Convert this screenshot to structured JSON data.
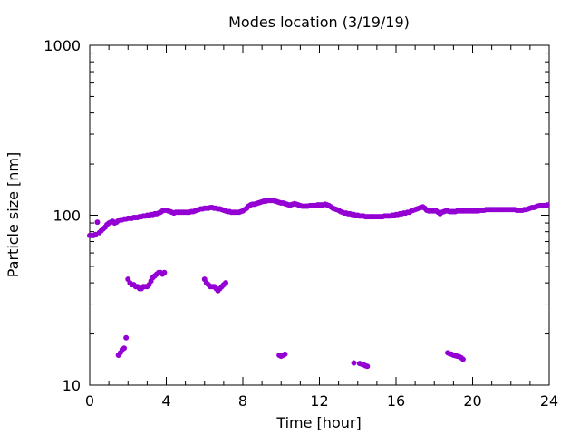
{
  "chart_data": {
    "type": "scatter",
    "title": "Modes location (3/19/19)",
    "xlabel": "Time [hour]",
    "ylabel": "Particle size [nm]",
    "xlim": [
      0,
      24
    ],
    "ylim": [
      10,
      1000
    ],
    "y_scale": "log",
    "x_ticks": [
      0,
      4,
      8,
      12,
      16,
      20,
      24
    ],
    "y_ticks": [
      10,
      100,
      1000
    ],
    "grid": false,
    "legend": "none",
    "marker_color": "#9400d3",
    "series": [
      {
        "points": [
          [
            0.0,
            76
          ],
          [
            0.1,
            76
          ],
          [
            0.2,
            76
          ],
          [
            0.3,
            77
          ],
          [
            0.4,
            91
          ],
          [
            0.5,
            79
          ],
          [
            0.6,
            81
          ],
          [
            0.7,
            83
          ],
          [
            0.8,
            85
          ],
          [
            0.9,
            88
          ],
          [
            1.0,
            90
          ],
          [
            1.1,
            91
          ],
          [
            1.2,
            92
          ],
          [
            1.3,
            90
          ],
          [
            1.4,
            91
          ],
          [
            1.5,
            93
          ],
          [
            1.6,
            94
          ],
          [
            1.7,
            94
          ],
          [
            1.8,
            95
          ],
          [
            1.9,
            95
          ],
          [
            2.0,
            96
          ],
          [
            2.1,
            96
          ],
          [
            2.2,
            96
          ],
          [
            2.3,
            97
          ],
          [
            2.4,
            97
          ],
          [
            2.5,
            97
          ],
          [
            2.6,
            98
          ],
          [
            2.7,
            98
          ],
          [
            2.8,
            99
          ],
          [
            2.9,
            99
          ],
          [
            3.0,
            100
          ],
          [
            3.1,
            100
          ],
          [
            3.2,
            101
          ],
          [
            3.3,
            101
          ],
          [
            3.4,
            102
          ],
          [
            3.5,
            102
          ],
          [
            3.6,
            103
          ],
          [
            3.7,
            104
          ],
          [
            3.8,
            106
          ],
          [
            3.9,
            107
          ],
          [
            4.0,
            107
          ],
          [
            4.1,
            106
          ],
          [
            4.2,
            105
          ],
          [
            4.3,
            104
          ],
          [
            4.4,
            103
          ],
          [
            4.5,
            104
          ],
          [
            4.6,
            104
          ],
          [
            4.7,
            104
          ],
          [
            4.8,
            104
          ],
          [
            4.9,
            104
          ],
          [
            5.0,
            104
          ],
          [
            5.1,
            104
          ],
          [
            5.2,
            104
          ],
          [
            5.3,
            105
          ],
          [
            5.4,
            105
          ],
          [
            5.5,
            106
          ],
          [
            5.6,
            107
          ],
          [
            5.7,
            108
          ],
          [
            5.8,
            109
          ],
          [
            5.9,
            109
          ],
          [
            6.0,
            110
          ],
          [
            6.1,
            110
          ],
          [
            6.2,
            110
          ],
          [
            6.3,
            111
          ],
          [
            6.4,
            111
          ],
          [
            6.5,
            110
          ],
          [
            6.6,
            110
          ],
          [
            6.7,
            109
          ],
          [
            6.8,
            109
          ],
          [
            6.9,
            108
          ],
          [
            7.0,
            107
          ],
          [
            7.1,
            106
          ],
          [
            7.2,
            105
          ],
          [
            7.3,
            105
          ],
          [
            7.4,
            104
          ],
          [
            7.5,
            104
          ],
          [
            7.6,
            104
          ],
          [
            7.7,
            104
          ],
          [
            7.8,
            104
          ],
          [
            7.9,
            105
          ],
          [
            8.0,
            106
          ],
          [
            8.1,
            108
          ],
          [
            8.2,
            110
          ],
          [
            8.3,
            113
          ],
          [
            8.4,
            115
          ],
          [
            8.5,
            116
          ],
          [
            8.6,
            116
          ],
          [
            8.7,
            117
          ],
          [
            8.8,
            118
          ],
          [
            8.9,
            119
          ],
          [
            9.0,
            120
          ],
          [
            9.1,
            121
          ],
          [
            9.2,
            121
          ],
          [
            9.3,
            122
          ],
          [
            9.4,
            122
          ],
          [
            9.5,
            122
          ],
          [
            9.6,
            122
          ],
          [
            9.7,
            121
          ],
          [
            9.8,
            120
          ],
          [
            9.9,
            119
          ],
          [
            10.0,
            118
          ],
          [
            10.1,
            118
          ],
          [
            10.2,
            117
          ],
          [
            10.3,
            116
          ],
          [
            10.4,
            115
          ],
          [
            10.5,
            115
          ],
          [
            10.6,
            116
          ],
          [
            10.7,
            117
          ],
          [
            10.8,
            116
          ],
          [
            10.9,
            115
          ],
          [
            11.0,
            114
          ],
          [
            11.1,
            113
          ],
          [
            11.2,
            113
          ],
          [
            11.3,
            113
          ],
          [
            11.4,
            113
          ],
          [
            11.5,
            114
          ],
          [
            11.6,
            114
          ],
          [
            11.7,
            114
          ],
          [
            11.8,
            114
          ],
          [
            11.9,
            115
          ],
          [
            12.0,
            115
          ],
          [
            12.1,
            115
          ],
          [
            12.2,
            115
          ],
          [
            12.3,
            116
          ],
          [
            12.4,
            115
          ],
          [
            12.5,
            114
          ],
          [
            12.6,
            112
          ],
          [
            12.7,
            110
          ],
          [
            12.8,
            109
          ],
          [
            12.9,
            108
          ],
          [
            13.0,
            107
          ],
          [
            13.1,
            105
          ],
          [
            13.2,
            104
          ],
          [
            13.3,
            103
          ],
          [
            13.4,
            103
          ],
          [
            13.5,
            102
          ],
          [
            13.6,
            102
          ],
          [
            13.7,
            101
          ],
          [
            13.8,
            101
          ],
          [
            13.9,
            100
          ],
          [
            14.0,
            100
          ],
          [
            14.1,
            99
          ],
          [
            14.2,
            99
          ],
          [
            14.3,
            99
          ],
          [
            14.4,
            98
          ],
          [
            14.5,
            98
          ],
          [
            14.6,
            98
          ],
          [
            14.7,
            98
          ],
          [
            14.8,
            98
          ],
          [
            14.9,
            98
          ],
          [
            15.0,
            98
          ],
          [
            15.1,
            98
          ],
          [
            15.2,
            98
          ],
          [
            15.3,
            98
          ],
          [
            15.4,
            99
          ],
          [
            15.5,
            99
          ],
          [
            15.6,
            99
          ],
          [
            15.7,
            99
          ],
          [
            15.8,
            100
          ],
          [
            15.9,
            100
          ],
          [
            16.0,
            101
          ],
          [
            16.1,
            101
          ],
          [
            16.2,
            102
          ],
          [
            16.3,
            102
          ],
          [
            16.4,
            103
          ],
          [
            16.5,
            103
          ],
          [
            16.6,
            104
          ],
          [
            16.7,
            104
          ],
          [
            16.8,
            106
          ],
          [
            16.9,
            107
          ],
          [
            17.0,
            108
          ],
          [
            17.1,
            109
          ],
          [
            17.2,
            110
          ],
          [
            17.3,
            111
          ],
          [
            17.4,
            112
          ],
          [
            17.5,
            110
          ],
          [
            17.6,
            107
          ],
          [
            17.7,
            106
          ],
          [
            17.8,
            106
          ],
          [
            17.9,
            106
          ],
          [
            18.0,
            106
          ],
          [
            18.1,
            106
          ],
          [
            18.2,
            104
          ],
          [
            18.3,
            102
          ],
          [
            18.4,
            104
          ],
          [
            18.5,
            105
          ],
          [
            18.6,
            106
          ],
          [
            18.7,
            106
          ],
          [
            18.8,
            105
          ],
          [
            18.9,
            105
          ],
          [
            19.0,
            105
          ],
          [
            19.1,
            105
          ],
          [
            19.2,
            106
          ],
          [
            19.3,
            106
          ],
          [
            19.4,
            106
          ],
          [
            19.5,
            106
          ],
          [
            19.6,
            106
          ],
          [
            19.7,
            106
          ],
          [
            19.8,
            106
          ],
          [
            19.9,
            106
          ],
          [
            20.0,
            106
          ],
          [
            20.1,
            106
          ],
          [
            20.2,
            106
          ],
          [
            20.3,
            106
          ],
          [
            20.4,
            107
          ],
          [
            20.5,
            107
          ],
          [
            20.6,
            107
          ],
          [
            20.7,
            108
          ],
          [
            20.8,
            108
          ],
          [
            20.9,
            108
          ],
          [
            21.0,
            108
          ],
          [
            21.1,
            108
          ],
          [
            21.2,
            108
          ],
          [
            21.3,
            108
          ],
          [
            21.4,
            108
          ],
          [
            21.5,
            108
          ],
          [
            21.6,
            108
          ],
          [
            21.7,
            108
          ],
          [
            21.8,
            108
          ],
          [
            21.9,
            108
          ],
          [
            22.0,
            108
          ],
          [
            22.1,
            108
          ],
          [
            22.2,
            108
          ],
          [
            22.3,
            107
          ],
          [
            22.4,
            107
          ],
          [
            22.5,
            107
          ],
          [
            22.6,
            107
          ],
          [
            22.7,
            108
          ],
          [
            22.8,
            108
          ],
          [
            22.9,
            109
          ],
          [
            23.0,
            110
          ],
          [
            23.1,
            111
          ],
          [
            23.2,
            111
          ],
          [
            23.3,
            112
          ],
          [
            23.4,
            113
          ],
          [
            23.5,
            114
          ],
          [
            23.6,
            114
          ],
          [
            23.7,
            114
          ],
          [
            23.8,
            114
          ],
          [
            23.9,
            115
          ],
          [
            2.0,
            42
          ],
          [
            2.1,
            40
          ],
          [
            2.2,
            39
          ],
          [
            2.3,
            39
          ],
          [
            2.4,
            38
          ],
          [
            2.5,
            38
          ],
          [
            2.6,
            37
          ],
          [
            2.7,
            37
          ],
          [
            2.8,
            38
          ],
          [
            2.9,
            38
          ],
          [
            3.0,
            38
          ],
          [
            3.1,
            39
          ],
          [
            3.2,
            41
          ],
          [
            3.3,
            43
          ],
          [
            3.4,
            44
          ],
          [
            3.5,
            45
          ],
          [
            3.6,
            46
          ],
          [
            3.7,
            46
          ],
          [
            3.8,
            45
          ],
          [
            3.9,
            46
          ],
          [
            6.0,
            42
          ],
          [
            6.1,
            40
          ],
          [
            6.2,
            39
          ],
          [
            6.3,
            38
          ],
          [
            6.4,
            38
          ],
          [
            6.5,
            38
          ],
          [
            6.6,
            37
          ],
          [
            6.7,
            36
          ],
          [
            6.8,
            37
          ],
          [
            6.9,
            38
          ],
          [
            7.0,
            39
          ],
          [
            7.1,
            40
          ],
          [
            1.5,
            15
          ],
          [
            1.6,
            15.5
          ],
          [
            1.7,
            16.2
          ],
          [
            1.8,
            16.5
          ],
          [
            1.9,
            19
          ],
          [
            9.9,
            15
          ],
          [
            10.0,
            14.8
          ],
          [
            10.1,
            15
          ],
          [
            10.2,
            15.2
          ],
          [
            13.8,
            13.5
          ],
          [
            14.1,
            13.4
          ],
          [
            14.2,
            13.3
          ],
          [
            14.3,
            13.2
          ],
          [
            14.4,
            13.0
          ],
          [
            14.5,
            12.9
          ],
          [
            18.7,
            15.5
          ],
          [
            18.8,
            15.3
          ],
          [
            18.9,
            15.2
          ],
          [
            19.0,
            15.0
          ],
          [
            19.1,
            14.9
          ],
          [
            19.2,
            14.8
          ],
          [
            19.3,
            14.7
          ],
          [
            19.4,
            14.5
          ],
          [
            19.5,
            14.2
          ]
        ]
      }
    ]
  }
}
